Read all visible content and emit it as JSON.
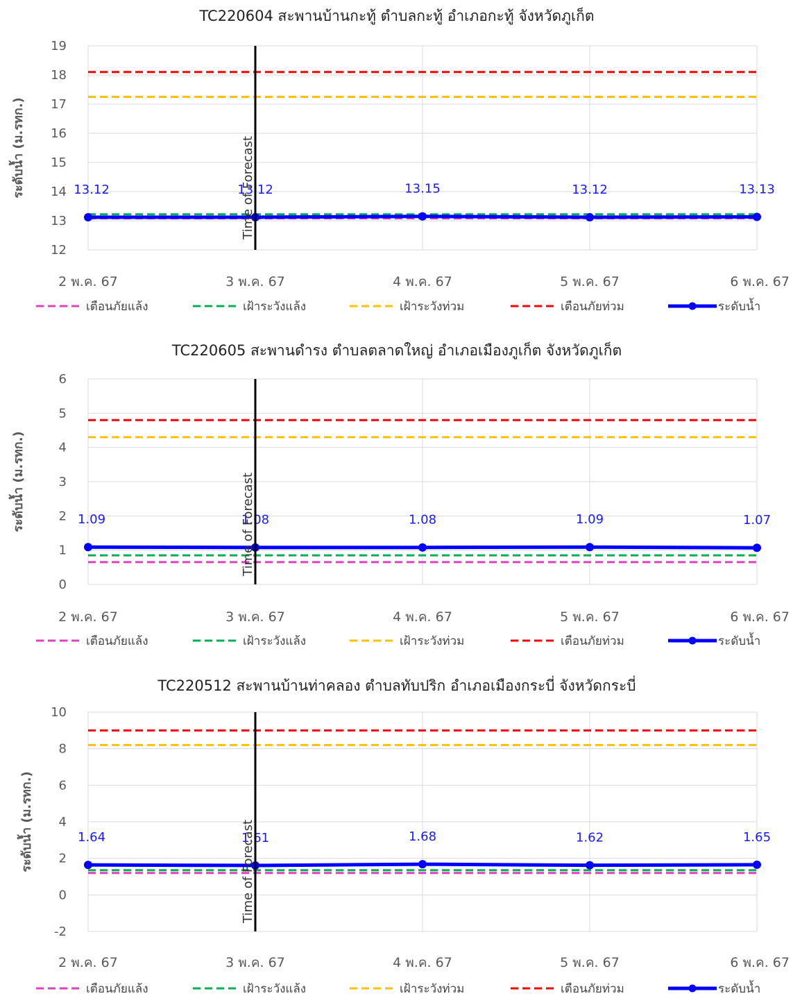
{
  "legend_labels": [
    "เตือนภัยแล้ง",
    "เฝ้าระวังแล้ง",
    "เฝ้าระวังท่วม",
    "เตือนภัยท่วม",
    "ระดับน้ำ"
  ],
  "legend_colors": [
    "#e040c0",
    "#00b050",
    "#ffc000",
    "#ff0000",
    "#0000ff"
  ],
  "y_axis_label": "ระดับน้ำ (ม.รทก.)",
  "forecast_label": "Time of Forecast",
  "chart_data": [
    {
      "type": "line",
      "title": "TC220604 สะพานบ้านกะทู้ ตำบลกะทู้ อำเภอกะทู้  จังหวัดภูเก็ต",
      "ylabel": "ระดับน้ำ (ม.รทก.)",
      "categories": [
        "2 พ.ค. 67",
        "3 พ.ค. 67",
        "4 พ.ค. 67",
        "5 พ.ค. 67",
        "6 พ.ค. 67"
      ],
      "ylim": [
        12,
        19
      ],
      "yticks": [
        12,
        13,
        14,
        15,
        16,
        17,
        18,
        19
      ],
      "forecast_at": "3 พ.ค. 67",
      "series": [
        {
          "name": "เตือนภัยแล้ง",
          "style": "dashed",
          "color": "#e040c0",
          "values": [
            13.08,
            13.08,
            13.08,
            13.08,
            13.08
          ]
        },
        {
          "name": "เฝ้าระวังแล้ง",
          "style": "dashed",
          "color": "#00b050",
          "values": [
            13.22,
            13.22,
            13.22,
            13.22,
            13.22
          ]
        },
        {
          "name": "เฝ้าระวังท่วม",
          "style": "dashed",
          "color": "#ffc000",
          "values": [
            17.25,
            17.25,
            17.25,
            17.25,
            17.25
          ]
        },
        {
          "name": "เตือนภัยท่วม",
          "style": "dashed",
          "color": "#ff0000",
          "values": [
            18.1,
            18.1,
            18.1,
            18.1,
            18.1
          ]
        },
        {
          "name": "ระดับน้ำ",
          "style": "solid-marker",
          "color": "#0000ff",
          "values": [
            13.12,
            13.12,
            13.15,
            13.12,
            13.13
          ],
          "labels": [
            "13.12",
            "13.12",
            "13.15",
            "13.12",
            "13.13"
          ]
        }
      ]
    },
    {
      "type": "line",
      "title": "TC220605 สะพานดำรง ตำบลตลาดใหญ่ อำเภอเมืองภูเก็ต จังหวัดภูเก็ต",
      "ylabel": "ระดับน้ำ (ม.รทก.)",
      "categories": [
        "2 พ.ค. 67",
        "3 พ.ค. 67",
        "4 พ.ค. 67",
        "5 พ.ค. 67",
        "6 พ.ค. 67"
      ],
      "ylim": [
        0,
        6
      ],
      "yticks": [
        0,
        1,
        2,
        3,
        4,
        5,
        6
      ],
      "forecast_at": "3 พ.ค. 67",
      "series": [
        {
          "name": "เตือนภัยแล้ง",
          "style": "dashed",
          "color": "#e040c0",
          "values": [
            0.65,
            0.65,
            0.65,
            0.65,
            0.65
          ]
        },
        {
          "name": "เฝ้าระวังแล้ง",
          "style": "dashed",
          "color": "#00b050",
          "values": [
            0.85,
            0.85,
            0.85,
            0.85,
            0.85
          ]
        },
        {
          "name": "เฝ้าระวังท่วม",
          "style": "dashed",
          "color": "#ffc000",
          "values": [
            4.3,
            4.3,
            4.3,
            4.3,
            4.3
          ]
        },
        {
          "name": "เตือนภัยท่วม",
          "style": "dashed",
          "color": "#ff0000",
          "values": [
            4.8,
            4.8,
            4.8,
            4.8,
            4.8
          ]
        },
        {
          "name": "ระดับน้ำ",
          "style": "solid-marker",
          "color": "#0000ff",
          "values": [
            1.09,
            1.08,
            1.08,
            1.09,
            1.07
          ],
          "labels": [
            "1.09",
            "1.08",
            "1.08",
            "1.09",
            "1.07"
          ]
        }
      ]
    },
    {
      "type": "line",
      "title": "TC220512 สะพานบ้านท่าคลอง ตำบลทับปริก อำเภอเมืองกระบี่  จังหวัดกระบี่",
      "ylabel": "ระดับน้ำ (ม.รทก.)",
      "categories": [
        "2 พ.ค. 67",
        "3 พ.ค. 67",
        "4 พ.ค. 67",
        "5 พ.ค. 67",
        "6 พ.ค. 67"
      ],
      "ylim": [
        -2,
        10
      ],
      "yticks": [
        -2,
        0,
        2,
        4,
        6,
        8,
        10
      ],
      "forecast_at": "3 พ.ค. 67",
      "series": [
        {
          "name": "เตือนภัยแล้ง",
          "style": "dashed",
          "color": "#e040c0",
          "values": [
            1.2,
            1.2,
            1.2,
            1.2,
            1.2
          ]
        },
        {
          "name": "เฝ้าระวังแล้ง",
          "style": "dashed",
          "color": "#00b050",
          "values": [
            1.35,
            1.35,
            1.35,
            1.35,
            1.35
          ]
        },
        {
          "name": "เฝ้าระวังท่วม",
          "style": "dashed",
          "color": "#ffc000",
          "values": [
            8.2,
            8.2,
            8.2,
            8.2,
            8.2
          ]
        },
        {
          "name": "เตือนภัยท่วม",
          "style": "dashed",
          "color": "#ff0000",
          "values": [
            9.0,
            9.0,
            9.0,
            9.0,
            9.0
          ]
        },
        {
          "name": "ระดับน้ำ",
          "style": "solid-marker",
          "color": "#0000ff",
          "values": [
            1.64,
            1.61,
            1.68,
            1.62,
            1.65
          ],
          "labels": [
            "1.64",
            "1.61",
            "1.68",
            "1.62",
            "1.65"
          ]
        }
      ]
    }
  ]
}
